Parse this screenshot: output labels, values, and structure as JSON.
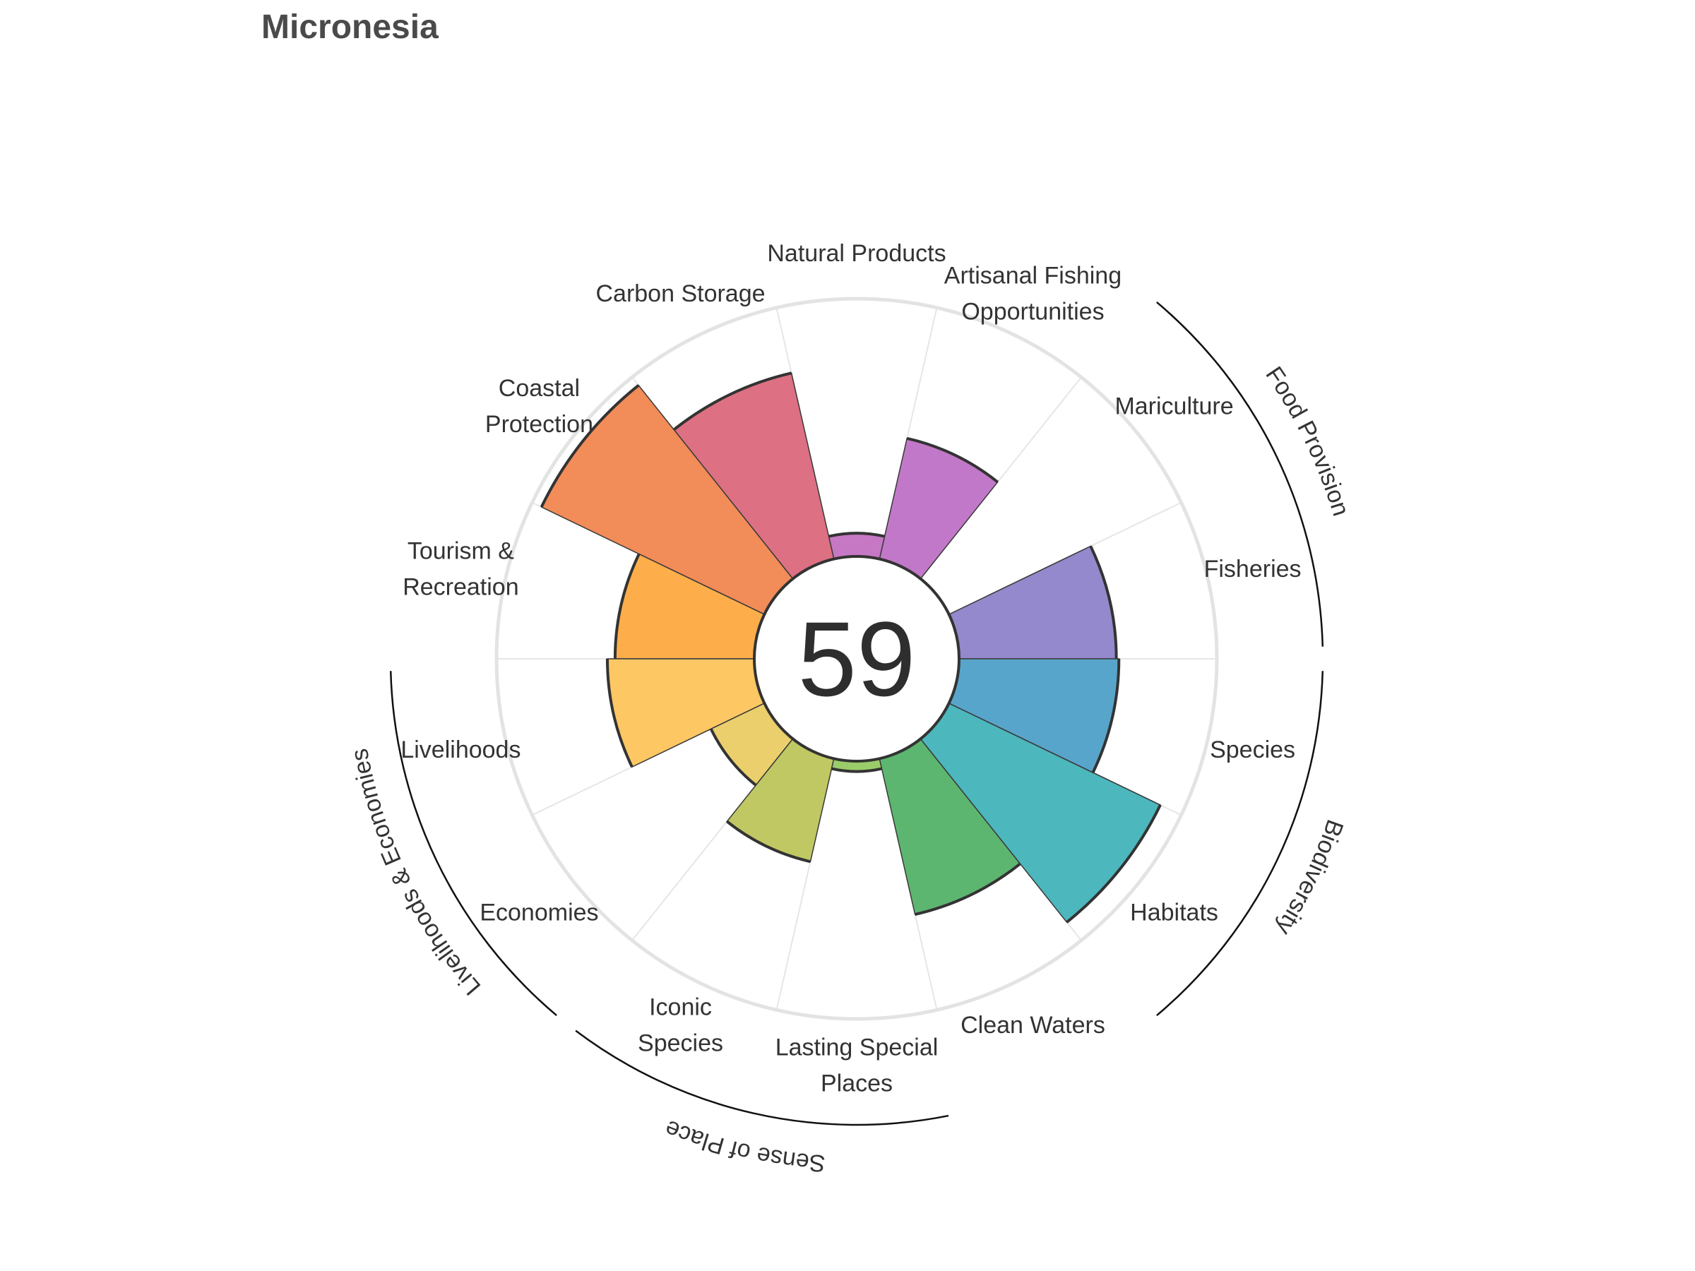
{
  "chart_data": {
    "type": "polar-bar",
    "title": "Micronesia",
    "center_score": "59",
    "rlim": [
      0,
      100
    ],
    "goals": [
      {
        "label_lines": [
          "Fisheries"
        ],
        "value": 61,
        "color": "#9389cc"
      },
      {
        "label_lines": [
          "Mariculture"
        ],
        "value": 0,
        "color": "#a888c8"
      },
      {
        "label_lines": [
          "Artisanal Fishing",
          "Opportunities"
        ],
        "value": 48,
        "color": "#c278c8"
      },
      {
        "label_lines": [
          "Natural Products"
        ],
        "value": 9,
        "color": "#c678c4"
      },
      {
        "label_lines": [
          "Carbon Storage"
        ],
        "value": 74,
        "color": "#dd7082"
      },
      {
        "label_lines": [
          "Coastal",
          "Protection"
        ],
        "value": 96,
        "color": "#f28c58"
      },
      {
        "label_lines": [
          "Tourism &",
          "Recreation"
        ],
        "value": 54,
        "color": "#fdae4b"
      },
      {
        "label_lines": [
          "Livelihoods"
        ],
        "value": 57,
        "color": "#fdc763"
      },
      {
        "label_lines": [
          "Economies"
        ],
        "value": 23,
        "color": "#ebcf6c"
      },
      {
        "label_lines": [
          "Iconic",
          "Species"
        ],
        "value": 41,
        "color": "#c0c863"
      },
      {
        "label_lines": [
          "Lasting Special",
          "Places"
        ],
        "value": 4,
        "color": "#9bcc6a"
      },
      {
        "label_lines": [
          "Clean Waters"
        ],
        "value": 62,
        "color": "#5db670"
      },
      {
        "label_lines": [
          "Habitats"
        ],
        "value": 91,
        "color": "#4cb7bd"
      },
      {
        "label_lines": [
          "Species"
        ],
        "value": 62,
        "color": "#58a5cb"
      }
    ],
    "groups": [
      {
        "label": "Food Provision",
        "start": 0,
        "end": 2
      },
      {
        "label": "Biodiversity",
        "start": 12,
        "end": 14
      },
      {
        "label": "Sense of Place",
        "start": 9,
        "end": 11
      },
      {
        "label": "Livelihoods & Economies",
        "start": 7,
        "end": 9
      }
    ]
  }
}
